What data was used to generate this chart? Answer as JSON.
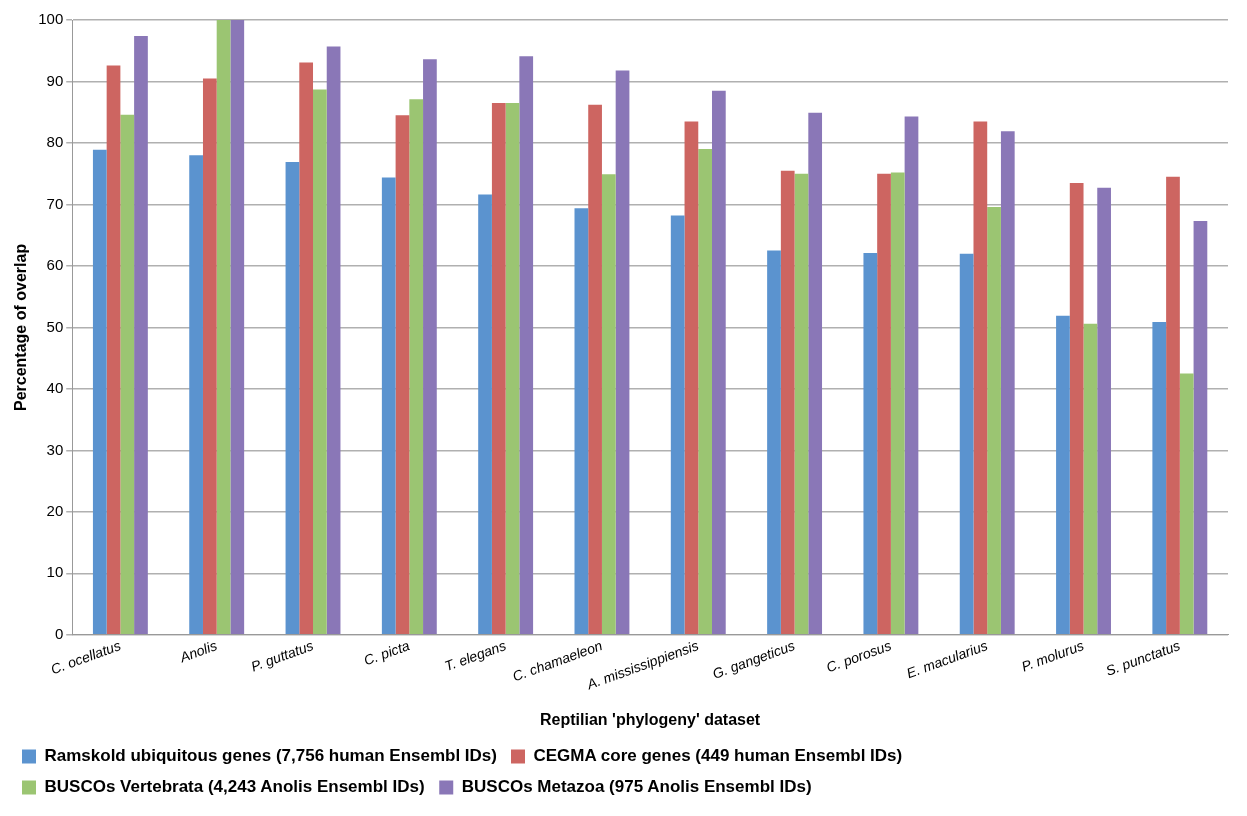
{
  "chart_data": {
    "type": "bar",
    "xlabel": "Reptilian 'phylogeny' dataset",
    "ylabel": "Percentage of overlap",
    "categories": [
      "C. ocellatus",
      "Anolis",
      "P. guttatus",
      "C. picta",
      "T. elegans",
      "C. chamaeleon",
      "A. mississippiensis",
      "G. gangeticus",
      "C. porosus",
      "E. macularius",
      "P. molurus",
      "S. punctatus"
    ],
    "series": [
      {
        "name": "Ramskold ubiquitous genes (7,756 human Ensembl IDs)",
        "color": "#5b93cf",
        "values": [
          78.9,
          78,
          76.9,
          74.4,
          71.6,
          69.4,
          68.2,
          62.5,
          62.1,
          62,
          51.9,
          50.9
        ]
      },
      {
        "name": "CEGMA core genes (449 human Ensembl IDs)",
        "color": "#cd6561",
        "values": [
          92.6,
          90.5,
          93.1,
          84.5,
          86.5,
          86.2,
          83.5,
          75.5,
          75,
          83.5,
          73.5,
          74.5
        ]
      },
      {
        "name": "BUSCOs Vertebrata (4,243 Anolis Ensembl IDs)",
        "color": "#9bc572",
        "values": [
          84.6,
          100,
          88.7,
          87.1,
          86.5,
          74.9,
          79,
          75,
          75.2,
          69.6,
          50.6,
          42.5
        ]
      },
      {
        "name": "BUSCOs Metazoa (975 Anolis Ensembl IDs)",
        "color": "#8a77b7",
        "values": [
          97.4,
          100,
          95.7,
          93.6,
          94.1,
          91.8,
          88.5,
          84.9,
          84.3,
          81.9,
          72.7,
          67.3
        ]
      }
    ],
    "ylim": [
      0,
      100
    ],
    "yticks": [
      0,
      10,
      20,
      30,
      40,
      50,
      60,
      70,
      80,
      90,
      100
    ],
    "grid": "y",
    "legend": "bottom"
  }
}
